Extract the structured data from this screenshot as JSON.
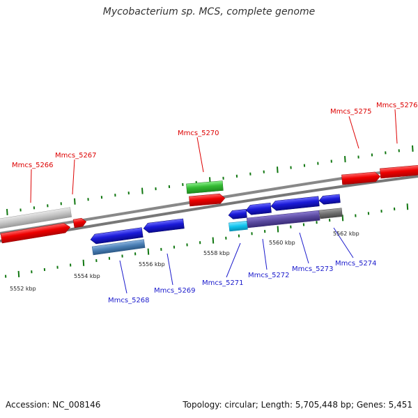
{
  "title": "Mycobacterium sp. MCS, complete genome",
  "footer": {
    "accession": "Accession: NC_008146",
    "summary": "Topology: circular; Length: 5,705,448 bp; Genes: 5,451"
  },
  "colors": {
    "forward_gene": "#ee0000",
    "reverse_gene": "#1a1ad8",
    "forward_label": "#dd0000",
    "reverse_label": "#1a1acc",
    "backbone": "#777777",
    "tick": "#117711",
    "rna_green": "#33bb33",
    "grey_feature": "#c4c4c4",
    "steel_feature": "#4a7fb5",
    "cyan_feature": "#10c4ee",
    "purple_feature": "#5a4aa0",
    "dark_grey_feature": "#6f6f6f"
  },
  "scale": {
    "ticks": [
      {
        "label": "5552 kbp"
      },
      {
        "label": "5554 kbp"
      },
      {
        "label": "5556 kbp"
      },
      {
        "label": "5558 kbp"
      },
      {
        "label": "5560 kbp"
      },
      {
        "label": "5562 kbp"
      }
    ]
  },
  "genes": [
    {
      "name": "Mmcs_5266",
      "strand": "forward"
    },
    {
      "name": "Mmcs_5267",
      "strand": "forward"
    },
    {
      "name": "Mmcs_5268",
      "strand": "reverse"
    },
    {
      "name": "Mmcs_5269",
      "strand": "reverse"
    },
    {
      "name": "Mmcs_5270",
      "strand": "forward"
    },
    {
      "name": "Mmcs_5271",
      "strand": "reverse"
    },
    {
      "name": "Mmcs_5272",
      "strand": "reverse"
    },
    {
      "name": "Mmcs_5273",
      "strand": "reverse"
    },
    {
      "name": "Mmcs_5274",
      "strand": "reverse"
    },
    {
      "name": "Mmcs_5275",
      "strand": "forward"
    },
    {
      "name": "Mmcs_5276",
      "strand": "forward"
    }
  ]
}
